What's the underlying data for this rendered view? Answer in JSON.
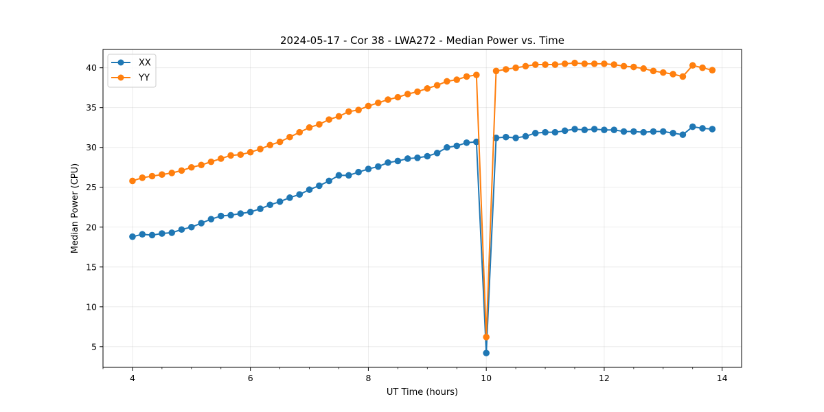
{
  "chart_data": {
    "type": "line",
    "title": "2024-05-17 - Cor 38 - LWA272 - Median Power vs. Time",
    "xlabel": "UT Time (hours)",
    "ylabel": "Median Power (CPU)",
    "xlim": [
      3.5,
      14.33
    ],
    "ylim": [
      2.4,
      42.3
    ],
    "xticks": [
      4,
      6,
      8,
      10,
      12,
      14
    ],
    "yticks": [
      5,
      10,
      15,
      20,
      25,
      30,
      35,
      40
    ],
    "xtick_labels": [
      "4",
      "6",
      "8",
      "10",
      "12",
      "14"
    ],
    "ytick_labels": [
      "5",
      "10",
      "15",
      "20",
      "25",
      "30",
      "35",
      "40"
    ],
    "grid": true,
    "legend_position": "top-left",
    "x": [
      4.0,
      4.167,
      4.333,
      4.5,
      4.667,
      4.833,
      5.0,
      5.167,
      5.333,
      5.5,
      5.667,
      5.833,
      6.0,
      6.167,
      6.333,
      6.5,
      6.667,
      6.833,
      7.0,
      7.167,
      7.333,
      7.5,
      7.667,
      7.833,
      8.0,
      8.167,
      8.333,
      8.5,
      8.667,
      8.833,
      9.0,
      9.167,
      9.333,
      9.5,
      9.667,
      9.833,
      10.0,
      10.167,
      10.333,
      10.5,
      10.667,
      10.833,
      11.0,
      11.167,
      11.333,
      11.5,
      11.667,
      11.833,
      12.0,
      12.167,
      12.333,
      12.5,
      12.667,
      12.833,
      13.0,
      13.167,
      13.333,
      13.5,
      13.667,
      13.833
    ],
    "series": [
      {
        "name": "XX",
        "color": "#1f77b4",
        "values": [
          18.8,
          19.1,
          19.0,
          19.2,
          19.3,
          19.7,
          20.0,
          20.5,
          21.0,
          21.4,
          21.5,
          21.7,
          21.9,
          22.3,
          22.8,
          23.2,
          23.7,
          24.1,
          24.7,
          25.2,
          25.8,
          26.5,
          26.5,
          26.9,
          27.3,
          27.6,
          28.1,
          28.3,
          28.6,
          28.7,
          28.9,
          29.3,
          30.0,
          30.2,
          30.6,
          30.7,
          4.2,
          31.2,
          31.3,
          31.2,
          31.4,
          31.8,
          31.9,
          31.9,
          32.1,
          32.3,
          32.2,
          32.3,
          32.2,
          32.2,
          32.0,
          32.0,
          31.9,
          32.0,
          32.0,
          31.8,
          31.6,
          32.6,
          32.4,
          32.3
        ]
      },
      {
        "name": "YY",
        "color": "#ff7f0e",
        "values": [
          25.8,
          26.2,
          26.4,
          26.6,
          26.8,
          27.1,
          27.5,
          27.8,
          28.2,
          28.6,
          29.0,
          29.1,
          29.4,
          29.8,
          30.3,
          30.7,
          31.3,
          31.9,
          32.5,
          32.9,
          33.5,
          33.9,
          34.5,
          34.7,
          35.2,
          35.6,
          36.0,
          36.3,
          36.7,
          37.0,
          37.4,
          37.8,
          38.3,
          38.5,
          38.9,
          39.1,
          6.2,
          39.6,
          39.8,
          40.0,
          40.2,
          40.4,
          40.4,
          40.4,
          40.5,
          40.6,
          40.5,
          40.5,
          40.5,
          40.4,
          40.2,
          40.1,
          39.9,
          39.6,
          39.4,
          39.2,
          38.9,
          40.3,
          40.0,
          39.7
        ]
      }
    ]
  }
}
